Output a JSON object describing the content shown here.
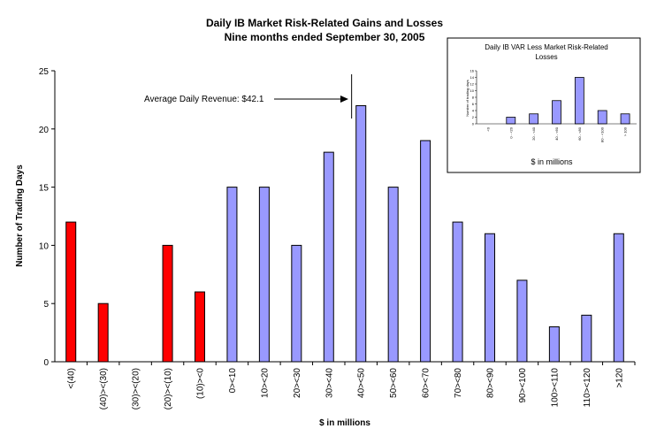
{
  "chart_data": {
    "type": "bar",
    "title": "Daily IB Market Risk-Related Gains and Losses",
    "subtitle": "Nine months ended September 30, 2005",
    "xlabel": "$ in millions",
    "ylabel": "Number of Trading Days",
    "ylim": [
      0,
      25
    ],
    "yticks": [
      "0",
      "5",
      "10",
      "15",
      "20",
      "25"
    ],
    "grid": false,
    "categories": [
      "<(40)",
      "(40)><(30)",
      "(30)><(20)",
      "(20)><(10)",
      "(10)><0",
      "0><10",
      "10><20",
      "20><30",
      "30><40",
      "40><50",
      "50><60",
      "60><70",
      "70><80",
      "80><90",
      "90><100",
      "100><110",
      "110><120",
      ">120"
    ],
    "values": [
      12,
      5,
      0,
      10,
      6,
      15,
      15,
      10,
      18,
      22,
      15,
      19,
      12,
      11,
      7,
      3,
      4,
      11
    ],
    "colors": {
      "loss": "#ff0000",
      "gain": "#9999ff",
      "border": "#000000"
    },
    "annotation": {
      "text": "Average Daily Revenue: $42.1",
      "x_value": 42.1
    },
    "inset": {
      "type": "bar",
      "title_line1": "Daily IB VAR Less Market Risk-Related",
      "title_line2": "Losses",
      "xlabel": "$ in millions",
      "ylabel": "Number of trading days",
      "ylim": [
        0,
        16
      ],
      "yticks": [
        "0",
        "2",
        "4",
        "6",
        "8",
        "10",
        "12",
        "14",
        "16"
      ],
      "categories": [
        "<0",
        "0 - <20",
        "20 - <40",
        "40 - <60",
        "60 - <80",
        "80 - <100",
        "> 100"
      ],
      "values": [
        0,
        2,
        3,
        7,
        14,
        4,
        3
      ]
    }
  }
}
